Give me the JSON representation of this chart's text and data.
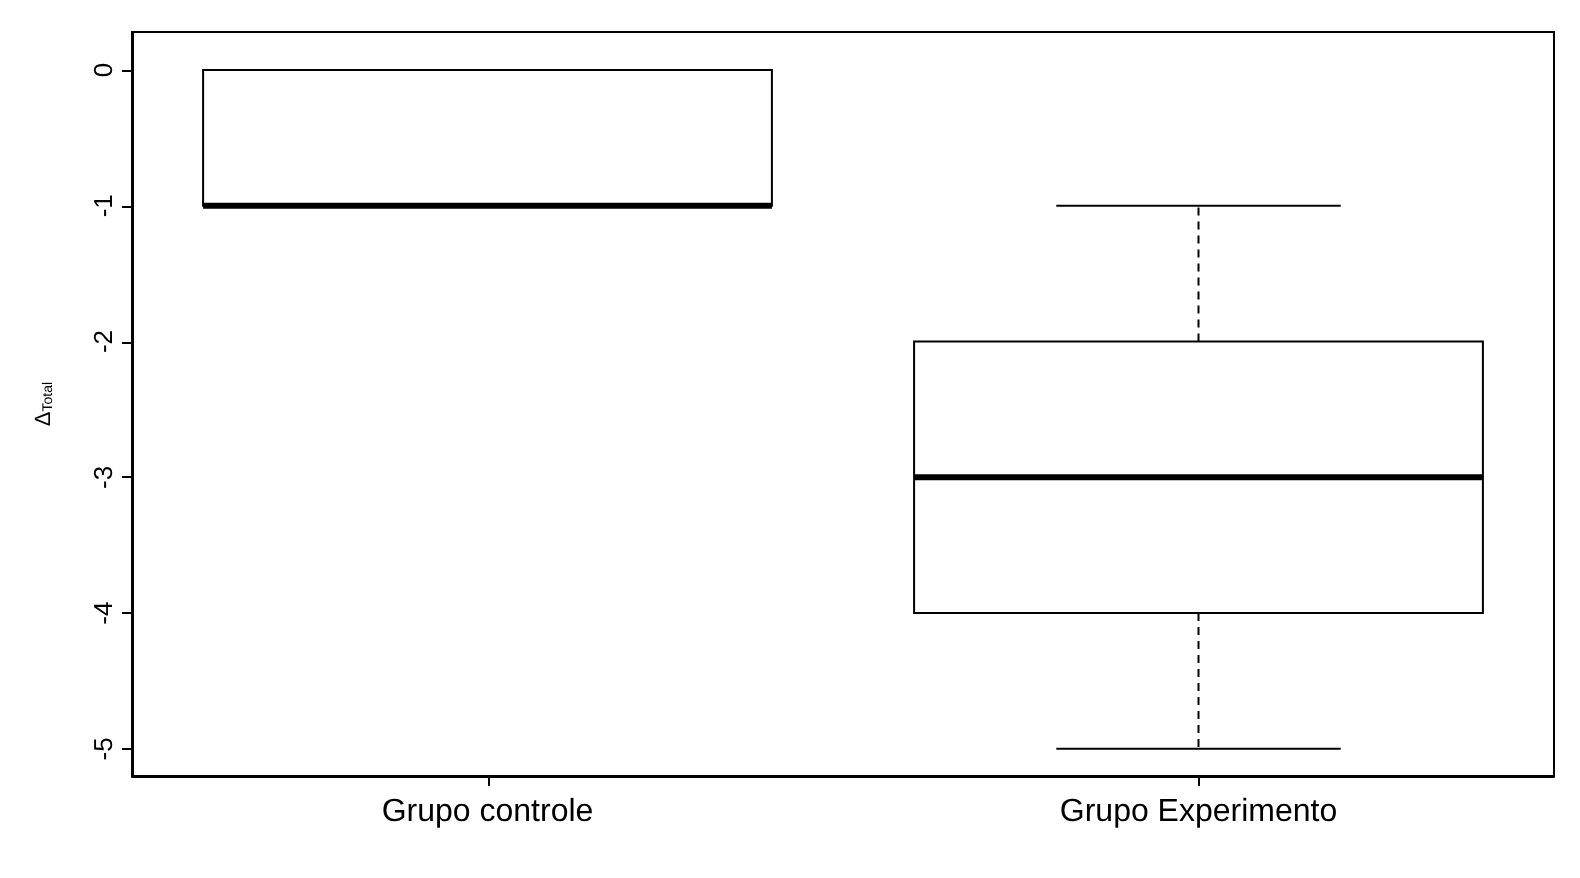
{
  "chart_data": {
    "type": "box",
    "ylabel": "Δ$_{Total}$",
    "categories": [
      "Grupo controle",
      "Grupo Experimento"
    ],
    "boxes": [
      {
        "low": -1,
        "q1": -1,
        "median": -1,
        "q3": 0,
        "high": 0
      },
      {
        "low": -5,
        "q1": -4,
        "median": -3,
        "q3": -2,
        "high": -1
      }
    ],
    "ylim": [
      -5.2,
      0.28
    ],
    "yticks": [
      0,
      -1,
      -2,
      -3,
      -4,
      -5
    ],
    "grid": false
  }
}
